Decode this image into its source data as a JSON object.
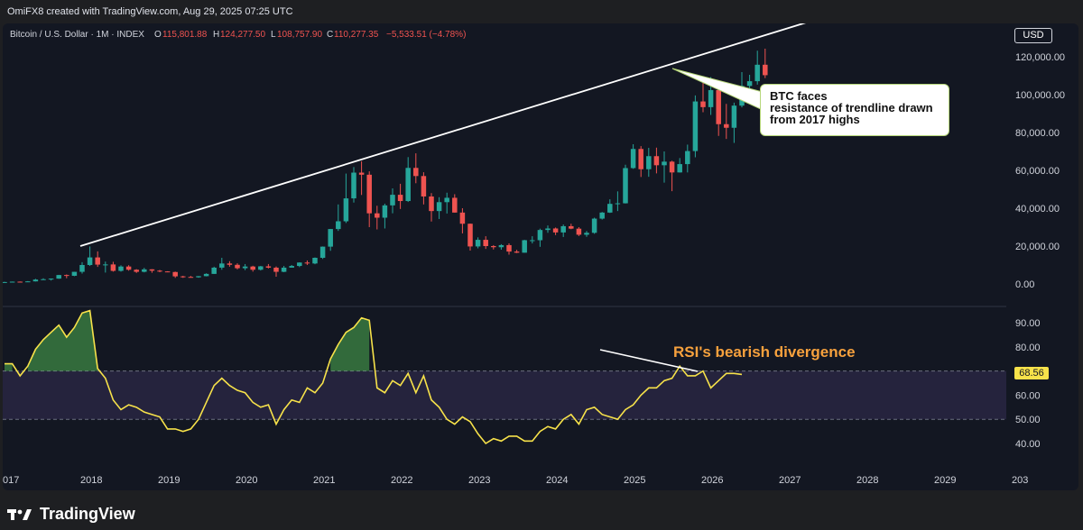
{
  "header": {
    "credit": "OmiFX8 created with TradingView.com, Aug 29, 2025 07:25 UTC"
  },
  "legend": {
    "symbol": "Bitcoin / U.S. Dollar · 1M · INDEX",
    "open_label": "O",
    "open": "115,801.88",
    "high_label": "H",
    "high": "124,277.50",
    "low_label": "L",
    "low": "108,757.90",
    "close_label": "C",
    "close": "110,277.35",
    "change": "−5,533.51 (−4.78%)"
  },
  "currency_tag": "USD",
  "annotation_trendline": "BTC faces\nresistance of trendline drawn\nfrom 2017 highs",
  "annotation_rsi": "RSI's bearish divergence",
  "rsi_value_tag": "68.56",
  "brand": "TradingView",
  "colors": {
    "up": "#26a69a",
    "down": "#ef5350",
    "rsi_line": "#f7e24a",
    "rsi_band": "#2a2845",
    "background": "#131722",
    "annotation_orange": "#f7a13d"
  },
  "chart_data": [
    {
      "type": "candlestick",
      "title": "Bitcoin / U.S. Dollar · 1M · INDEX",
      "x_ticks": [
        "017",
        "2018",
        "2019",
        "2020",
        "2021",
        "2022",
        "2023",
        "2024",
        "2025",
        "2026",
        "2027",
        "2028",
        "2029",
        "203"
      ],
      "y_ticks": [
        "120,000.00",
        "100,000.00",
        "80,000.00",
        "60,000.00",
        "40,000.00",
        "20,000.00",
        "0.00"
      ],
      "ylim": [
        -12000,
        133000
      ],
      "candles_approx": [
        {
          "t": 2017.0,
          "o": 1000,
          "h": 1150,
          "l": 900,
          "c": 1000
        },
        {
          "t": 2017.1,
          "o": 1000,
          "h": 1250,
          "l": 950,
          "c": 1200
        },
        {
          "t": 2017.2,
          "o": 1200,
          "h": 1300,
          "l": 900,
          "c": 1100
        },
        {
          "t": 2017.3,
          "o": 1100,
          "h": 1500,
          "l": 1000,
          "c": 1350
        },
        {
          "t": 2017.4,
          "o": 1350,
          "h": 2700,
          "l": 1300,
          "c": 2300
        },
        {
          "t": 2017.5,
          "o": 2300,
          "h": 3000,
          "l": 2200,
          "c": 2500
        },
        {
          "t": 2017.6,
          "o": 2500,
          "h": 2900,
          "l": 1800,
          "c": 2800
        },
        {
          "t": 2017.7,
          "o": 2800,
          "h": 4800,
          "l": 2700,
          "c": 4700
        },
        {
          "t": 2017.8,
          "o": 4700,
          "h": 5000,
          "l": 3000,
          "c": 4300
        },
        {
          "t": 2017.9,
          "o": 4300,
          "h": 6400,
          "l": 4100,
          "c": 6400
        },
        {
          "t": 2018.0,
          "o": 6400,
          "h": 11500,
          "l": 5500,
          "c": 10000
        },
        {
          "t": 2018.1,
          "o": 10000,
          "h": 19800,
          "l": 9500,
          "c": 14000
        },
        {
          "t": 2018.2,
          "o": 14000,
          "h": 17200,
          "l": 9000,
          "c": 10200
        },
        {
          "t": 2018.3,
          "o": 10200,
          "h": 11800,
          "l": 6000,
          "c": 10300
        },
        {
          "t": 2018.4,
          "o": 10300,
          "h": 11700,
          "l": 6500,
          "c": 6900
        },
        {
          "t": 2018.5,
          "o": 6900,
          "h": 9800,
          "l": 6500,
          "c": 9200
        },
        {
          "t": 2018.6,
          "o": 9200,
          "h": 9900,
          "l": 7000,
          "c": 7500
        },
        {
          "t": 2018.7,
          "o": 7500,
          "h": 7800,
          "l": 5800,
          "c": 6400
        },
        {
          "t": 2018.8,
          "o": 6400,
          "h": 8500,
          "l": 6100,
          "c": 7700
        },
        {
          "t": 2018.9,
          "o": 7700,
          "h": 7800,
          "l": 5900,
          "c": 7000
        },
        {
          "t": 2019.0,
          "o": 7000,
          "h": 7400,
          "l": 6200,
          "c": 6600
        },
        {
          "t": 2019.1,
          "o": 6600,
          "h": 6700,
          "l": 6200,
          "c": 6300
        },
        {
          "t": 2019.2,
          "o": 6300,
          "h": 6500,
          "l": 3200,
          "c": 4000
        },
        {
          "t": 2019.3,
          "o": 4000,
          "h": 4300,
          "l": 3200,
          "c": 3700
        },
        {
          "t": 2019.4,
          "o": 3700,
          "h": 4200,
          "l": 3400,
          "c": 3500
        },
        {
          "t": 2019.5,
          "o": 3500,
          "h": 4100,
          "l": 3300,
          "c": 4100
        },
        {
          "t": 2019.6,
          "o": 4100,
          "h": 5600,
          "l": 4000,
          "c": 5300
        },
        {
          "t": 2019.7,
          "o": 5300,
          "h": 9100,
          "l": 5300,
          "c": 8600
        },
        {
          "t": 2019.8,
          "o": 8600,
          "h": 13800,
          "l": 7500,
          "c": 10800
        },
        {
          "t": 2019.9,
          "o": 10800,
          "h": 12000,
          "l": 9100,
          "c": 10100
        },
        {
          "t": 2020.0,
          "o": 10100,
          "h": 10900,
          "l": 7700,
          "c": 8300
        },
        {
          "t": 2020.1,
          "o": 8300,
          "h": 10500,
          "l": 7300,
          "c": 9200
        },
        {
          "t": 2020.2,
          "o": 9200,
          "h": 9600,
          "l": 6500,
          "c": 7500
        },
        {
          "t": 2020.3,
          "o": 7500,
          "h": 9500,
          "l": 7100,
          "c": 9300
        },
        {
          "t": 2020.4,
          "o": 9300,
          "h": 10500,
          "l": 8200,
          "c": 8600
        },
        {
          "t": 2020.5,
          "o": 8600,
          "h": 9200,
          "l": 3800,
          "c": 6400
        },
        {
          "t": 2020.6,
          "o": 6400,
          "h": 9500,
          "l": 6200,
          "c": 8600
        },
        {
          "t": 2020.7,
          "o": 8600,
          "h": 10000,
          "l": 8600,
          "c": 9500
        },
        {
          "t": 2020.8,
          "o": 9500,
          "h": 11400,
          "l": 8900,
          "c": 11300
        },
        {
          "t": 2020.9,
          "o": 11300,
          "h": 12400,
          "l": 10000,
          "c": 10800
        },
        {
          "t": 2021.0,
          "o": 10800,
          "h": 14000,
          "l": 10400,
          "c": 13800
        },
        {
          "t": 2021.1,
          "o": 13800,
          "h": 19800,
          "l": 13200,
          "c": 19700
        },
        {
          "t": 2021.2,
          "o": 19700,
          "h": 29000,
          "l": 17500,
          "c": 29000
        },
        {
          "t": 2021.3,
          "o": 29000,
          "h": 42000,
          "l": 28000,
          "c": 33100
        },
        {
          "t": 2021.4,
          "o": 33100,
          "h": 58300,
          "l": 32200,
          "c": 45200
        },
        {
          "t": 2021.5,
          "o": 45200,
          "h": 61700,
          "l": 43000,
          "c": 58800
        },
        {
          "t": 2021.6,
          "o": 58800,
          "h": 64800,
          "l": 47000,
          "c": 57700
        },
        {
          "t": 2021.7,
          "o": 57700,
          "h": 59500,
          "l": 30000,
          "c": 37300
        },
        {
          "t": 2021.8,
          "o": 37300,
          "h": 41300,
          "l": 28800,
          "c": 35000
        },
        {
          "t": 2021.9,
          "o": 35000,
          "h": 42400,
          "l": 29300,
          "c": 41500
        },
        {
          "t": 2022.0,
          "o": 41500,
          "h": 50500,
          "l": 37300,
          "c": 47100
        },
        {
          "t": 2022.1,
          "o": 47100,
          "h": 52900,
          "l": 39600,
          "c": 43800
        },
        {
          "t": 2022.2,
          "o": 43800,
          "h": 67000,
          "l": 43300,
          "c": 61300
        },
        {
          "t": 2022.3,
          "o": 61300,
          "h": 69000,
          "l": 53200,
          "c": 57000
        },
        {
          "t": 2022.4,
          "o": 57000,
          "h": 59000,
          "l": 42000,
          "c": 46200
        },
        {
          "t": 2022.5,
          "o": 46200,
          "h": 48000,
          "l": 33000,
          "c": 38500
        },
        {
          "t": 2022.6,
          "o": 38500,
          "h": 45800,
          "l": 34300,
          "c": 43200
        },
        {
          "t": 2022.7,
          "o": 43200,
          "h": 48200,
          "l": 37200,
          "c": 45500
        },
        {
          "t": 2022.8,
          "o": 45500,
          "h": 47400,
          "l": 37700,
          "c": 37700
        },
        {
          "t": 2022.9,
          "o": 37700,
          "h": 40000,
          "l": 26700,
          "c": 31800
        },
        {
          "t": 2023.0,
          "o": 31800,
          "h": 31900,
          "l": 17600,
          "c": 19800
        },
        {
          "t": 2023.1,
          "o": 19800,
          "h": 24600,
          "l": 18800,
          "c": 23300
        },
        {
          "t": 2023.2,
          "o": 23300,
          "h": 25200,
          "l": 18500,
          "c": 20000
        },
        {
          "t": 2023.3,
          "o": 20000,
          "h": 20500,
          "l": 18200,
          "c": 19400
        },
        {
          "t": 2023.4,
          "o": 19400,
          "h": 21000,
          "l": 18100,
          "c": 20500
        },
        {
          "t": 2023.5,
          "o": 20500,
          "h": 21400,
          "l": 15500,
          "c": 17100
        },
        {
          "t": 2023.6,
          "o": 17100,
          "h": 18000,
          "l": 16300,
          "c": 16500
        },
        {
          "t": 2023.7,
          "o": 16500,
          "h": 23300,
          "l": 16500,
          "c": 23100
        },
        {
          "t": 2023.8,
          "o": 23100,
          "h": 25200,
          "l": 21400,
          "c": 23100
        },
        {
          "t": 2023.9,
          "o": 23100,
          "h": 29200,
          "l": 19600,
          "c": 28500
        },
        {
          "t": 2024.0,
          "o": 28500,
          "h": 30900,
          "l": 27000,
          "c": 29300
        },
        {
          "t": 2024.1,
          "o": 29300,
          "h": 29800,
          "l": 25800,
          "c": 27200
        },
        {
          "t": 2024.2,
          "o": 27200,
          "h": 31400,
          "l": 24800,
          "c": 30500
        },
        {
          "t": 2024.3,
          "o": 30500,
          "h": 31800,
          "l": 28900,
          "c": 29200
        },
        {
          "t": 2024.4,
          "o": 29200,
          "h": 30000,
          "l": 25300,
          "c": 26000
        },
        {
          "t": 2024.5,
          "o": 26000,
          "h": 28000,
          "l": 24900,
          "c": 27000
        },
        {
          "t": 2024.6,
          "o": 27000,
          "h": 35000,
          "l": 26500,
          "c": 34500
        },
        {
          "t": 2024.7,
          "o": 34500,
          "h": 38000,
          "l": 34000,
          "c": 37700
        },
        {
          "t": 2024.8,
          "o": 37700,
          "h": 44700,
          "l": 37500,
          "c": 42300
        },
        {
          "t": 2024.9,
          "o": 42300,
          "h": 48900,
          "l": 38500,
          "c": 42600
        },
        {
          "t": 2025.0,
          "o": 42600,
          "h": 63000,
          "l": 42500,
          "c": 61200
        },
        {
          "t": 2025.1,
          "o": 61200,
          "h": 73800,
          "l": 60800,
          "c": 71300
        },
        {
          "t": 2025.2,
          "o": 71300,
          "h": 72800,
          "l": 56500,
          "c": 60600
        },
        {
          "t": 2025.3,
          "o": 60600,
          "h": 71900,
          "l": 56600,
          "c": 67500
        },
        {
          "t": 2025.4,
          "o": 67500,
          "h": 72000,
          "l": 58400,
          "c": 62700
        },
        {
          "t": 2025.5,
          "o": 62700,
          "h": 70000,
          "l": 53500,
          "c": 64600
        },
        {
          "t": 2025.6,
          "o": 64600,
          "h": 65100,
          "l": 49000,
          "c": 58900
        },
        {
          "t": 2025.7,
          "o": 58900,
          "h": 66500,
          "l": 58800,
          "c": 63300
        },
        {
          "t": 2025.8,
          "o": 63300,
          "h": 73600,
          "l": 58900,
          "c": 70200
        },
        {
          "t": 2025.9,
          "o": 70200,
          "h": 99600,
          "l": 66900,
          "c": 96400
        },
        {
          "t": 2026.0,
          "o": 96400,
          "h": 108300,
          "l": 90700,
          "c": 93400
        },
        {
          "t": 2026.1,
          "o": 93400,
          "h": 109300,
          "l": 89300,
          "c": 102400
        },
        {
          "t": 2026.2,
          "o": 102400,
          "h": 102500,
          "l": 78200,
          "c": 84400
        },
        {
          "t": 2026.3,
          "o": 84400,
          "h": 95100,
          "l": 76600,
          "c": 82500
        },
        {
          "t": 2026.4,
          "o": 82500,
          "h": 95800,
          "l": 74500,
          "c": 94200
        },
        {
          "t": 2026.5,
          "o": 94200,
          "h": 111900,
          "l": 93300,
          "c": 104600
        },
        {
          "t": 2026.6,
          "o": 104600,
          "h": 110500,
          "l": 98300,
          "c": 107100
        },
        {
          "t": 2026.7,
          "o": 107100,
          "h": 123200,
          "l": 105300,
          "c": 115800
        },
        {
          "t": 2026.8,
          "o": 115801.88,
          "h": 124277.5,
          "l": 108757.9,
          "c": 110277.35
        }
      ]
    },
    {
      "type": "line",
      "series": [
        {
          "name": "RSI",
          "last": 68.56
        }
      ],
      "y_ticks": [
        "90.00",
        "80.00",
        "60.00",
        "50.00",
        "40.00"
      ],
      "levels": [
        70,
        50
      ],
      "ylim": [
        34,
        98
      ],
      "values_approx": [
        73,
        73,
        68,
        72,
        79,
        83,
        86,
        89,
        84,
        88,
        94,
        95,
        71,
        67,
        58,
        54,
        56,
        55,
        53,
        52,
        51,
        46,
        46,
        45,
        46,
        50,
        57,
        64,
        67,
        64,
        62,
        61,
        57,
        55,
        56,
        48,
        54,
        58,
        57,
        63,
        61,
        65,
        75,
        81,
        86,
        88,
        92,
        91,
        63,
        61,
        66,
        64,
        69,
        61,
        68,
        58,
        55,
        50,
        48,
        51,
        49,
        44,
        40,
        42,
        41,
        43,
        43,
        41,
        41,
        45,
        47,
        46,
        50,
        52,
        48,
        54,
        55,
        52,
        51,
        50,
        54,
        56,
        60,
        63,
        63,
        66,
        67,
        72,
        68,
        68,
        70,
        63,
        66,
        69,
        69,
        68.56
      ]
    }
  ]
}
